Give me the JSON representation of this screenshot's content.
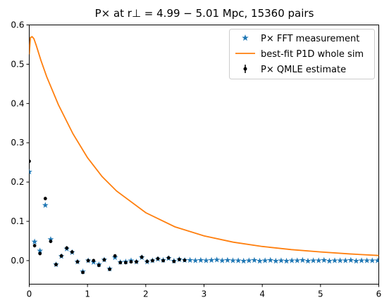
{
  "chart_data": {
    "type": "scatter",
    "title": "P× at r⊥ = 4.99 − 5.01 Mpc, 15360 pairs",
    "xlabel": "",
    "ylabel": "",
    "xlim": [
      0,
      6
    ],
    "ylim": [
      -0.06,
      0.6
    ],
    "xticks": [
      "0",
      "1",
      "2",
      "3",
      "4",
      "5",
      "6"
    ],
    "yticks": [
      "0.0",
      "0.1",
      "0.2",
      "0.3",
      "0.4",
      "0.5",
      "0.6"
    ],
    "legend_position": "top-right",
    "series": [
      {
        "name": "P× FFT measurement",
        "marker": "star",
        "color": "#1f77b4",
        "x": [
          0.0,
          0.092,
          0.184,
          0.276,
          0.368,
          0.46,
          0.552,
          0.644,
          0.736,
          0.828,
          0.92,
          1.012,
          1.104,
          1.196,
          1.288,
          1.38,
          1.472,
          1.564,
          1.656,
          1.748,
          1.84,
          1.932,
          2.024,
          2.116,
          2.208,
          2.3,
          2.392,
          2.484,
          2.576,
          2.668,
          2.76,
          2.852,
          2.944,
          3.036,
          3.128,
          3.22,
          3.312,
          3.404,
          3.496,
          3.588,
          3.68,
          3.772,
          3.864,
          3.956,
          4.048,
          4.14,
          4.232,
          4.324,
          4.416,
          4.508,
          4.6,
          4.692,
          4.784,
          4.876,
          4.968,
          5.06,
          5.152,
          5.244,
          5.336,
          5.428,
          5.52,
          5.612,
          5.704,
          5.796,
          5.888,
          5.98
        ],
        "y": [
          0.226,
          0.048,
          0.025,
          0.141,
          0.054,
          -0.01,
          0.011,
          0.03,
          0.021,
          -0.003,
          -0.028,
          0.0,
          -0.004,
          -0.01,
          0.002,
          -0.021,
          0.008,
          -0.004,
          -0.003,
          0.0,
          -0.003,
          0.008,
          -0.003,
          0.0,
          0.004,
          0.001,
          0.006,
          -0.001,
          0.003,
          0.001,
          0.001,
          0.0,
          0.001,
          0.0,
          0.001,
          0.002,
          0.0,
          0.001,
          0.0,
          0.0,
          -0.001,
          0.0,
          0.001,
          -0.001,
          0.0,
          0.001,
          -0.001,
          0.0,
          -0.001,
          0.0,
          0.0,
          0.001,
          -0.001,
          0.0,
          0.0,
          0.001,
          -0.001,
          0.0,
          0.0,
          0.0,
          0.001,
          -0.001,
          0.0,
          0.0,
          0.0,
          0.0
        ]
      },
      {
        "name": "P× QMLE estimate",
        "marker": "dot-errorbar",
        "color": "#000000",
        "x": [
          0.0,
          0.092,
          0.184,
          0.276,
          0.368,
          0.46,
          0.552,
          0.644,
          0.736,
          0.828,
          0.92,
          1.012,
          1.104,
          1.196,
          1.288,
          1.38,
          1.472,
          1.564,
          1.656,
          1.748,
          1.84,
          1.932,
          2.024,
          2.116,
          2.208,
          2.3,
          2.392,
          2.484,
          2.576,
          2.668
        ],
        "y": [
          0.253,
          0.038,
          0.018,
          0.158,
          0.049,
          -0.01,
          0.012,
          0.032,
          0.022,
          -0.003,
          -0.03,
          0.0,
          0.0,
          -0.012,
          0.002,
          -0.022,
          0.012,
          -0.005,
          -0.005,
          -0.003,
          -0.003,
          0.009,
          -0.002,
          0.0,
          0.005,
          0.0,
          0.007,
          -0.002,
          0.003,
          0.001
        ]
      },
      {
        "name": "best-fit P1D whole sim",
        "marker": "line",
        "color": "#ff7f0e",
        "x": [
          0.0,
          0.02,
          0.05,
          0.08,
          0.12,
          0.2,
          0.3,
          0.5,
          0.75,
          1.0,
          1.25,
          1.5,
          2.0,
          2.5,
          3.0,
          3.5,
          4.0,
          4.5,
          5.0,
          5.5,
          6.0
        ],
        "y": [
          0.525,
          0.568,
          0.57,
          0.565,
          0.548,
          0.51,
          0.468,
          0.397,
          0.323,
          0.262,
          0.214,
          0.177,
          0.122,
          0.086,
          0.063,
          0.047,
          0.036,
          0.028,
          0.022,
          0.017,
          0.013
        ]
      }
    ]
  }
}
